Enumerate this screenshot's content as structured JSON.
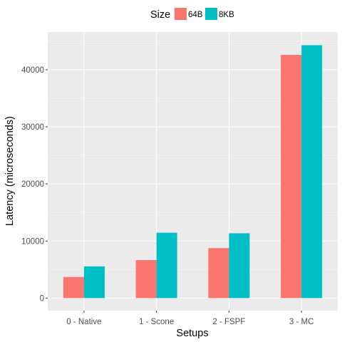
{
  "chart_data": {
    "type": "bar",
    "title": "",
    "xlabel": "Setups",
    "ylabel": "Latency (microseconds)",
    "categories": [
      "0 - Native",
      "1 - Scone",
      "2 - FSPF",
      "3 - MC"
    ],
    "series": [
      {
        "name": "64B",
        "color": "#F8766D",
        "values": [
          3700,
          6650,
          8750,
          42600
        ]
      },
      {
        "name": "8KB",
        "color": "#00BFC4",
        "values": [
          5550,
          11450,
          11350,
          44300
        ]
      }
    ],
    "ylim": [
      -2200,
      46600
    ],
    "yticks": [
      0,
      10000,
      20000,
      30000,
      40000
    ],
    "ytick_labels": [
      "0",
      "10000",
      "20000",
      "30000",
      "40000"
    ],
    "grid": true,
    "legend": {
      "title": "Size",
      "position": "top"
    },
    "colors": {
      "panel": "#EBEBEB",
      "grid_major": "#FFFFFF"
    }
  }
}
